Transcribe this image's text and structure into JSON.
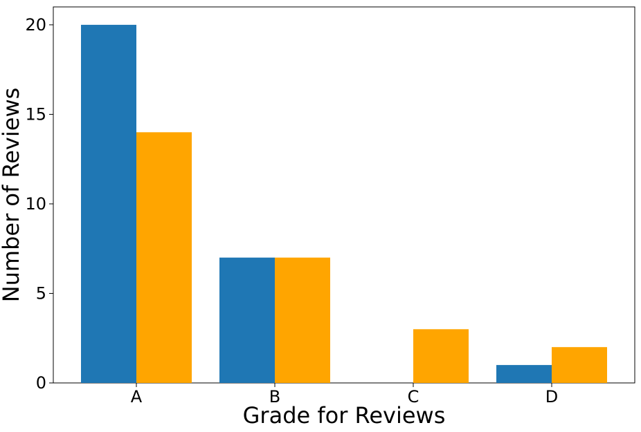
{
  "chart_data": {
    "type": "bar",
    "title": "",
    "xlabel": "Grade for Reviews",
    "ylabel": "Number of Reviews",
    "categories": [
      "A",
      "B",
      "C",
      "D"
    ],
    "series": [
      {
        "color": "#1f77b4",
        "values": [
          20,
          7,
          0,
          1
        ]
      },
      {
        "color": "#ffa500",
        "values": [
          14,
          7,
          3,
          2
        ]
      }
    ],
    "ylim": [
      0,
      21
    ],
    "yticks": [
      0,
      5,
      10,
      15,
      20
    ],
    "grid": false,
    "legend": "none"
  }
}
